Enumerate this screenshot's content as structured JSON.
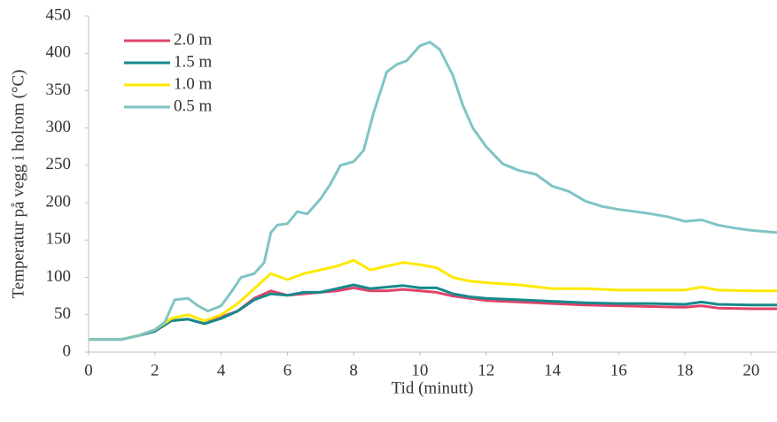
{
  "chart_data": {
    "type": "line",
    "xlabel": "Tid (minutt)",
    "ylabel": "Temperatur på vegg i holrom (°C)",
    "xlim": [
      0,
      20.78
    ],
    "xticks": [
      0,
      2,
      4,
      6,
      8,
      10,
      12,
      14,
      16,
      18,
      20
    ],
    "ylim": [
      0,
      450
    ],
    "yticks": [
      0,
      50,
      100,
      150,
      200,
      250,
      300,
      350,
      400,
      450
    ],
    "legend": "upper left",
    "series": [
      {
        "name": "2.0 m",
        "color": "#e0446a",
        "x": [
          0,
          1,
          1.5,
          2,
          2.5,
          3,
          3.5,
          4,
          4.5,
          5,
          5.5,
          6,
          6.5,
          7,
          7.5,
          8,
          8.5,
          9,
          9.5,
          10,
          10.5,
          11,
          11.5,
          12,
          13,
          14,
          15,
          16,
          17,
          18,
          18.5,
          19,
          20,
          20.78
        ],
        "values": [
          17,
          17,
          22,
          28,
          42,
          44,
          38,
          47,
          55,
          72,
          82,
          76,
          78,
          80,
          82,
          86,
          82,
          82,
          84,
          82,
          80,
          75,
          72,
          69,
          67,
          65,
          63,
          62,
          61,
          60,
          62,
          59,
          58,
          58
        ]
      },
      {
        "name": "1.5 m",
        "color": "#158a8c",
        "x": [
          0,
          1,
          1.5,
          2,
          2.5,
          3,
          3.5,
          4,
          4.5,
          5,
          5.5,
          6,
          6.5,
          7,
          7.5,
          8,
          8.5,
          9,
          9.5,
          10,
          10.5,
          11,
          11.5,
          12,
          13,
          14,
          15,
          16,
          17,
          18,
          18.5,
          19,
          20,
          20.78
        ],
        "values": [
          17,
          17,
          22,
          28,
          42,
          44,
          38,
          45,
          55,
          70,
          78,
          76,
          80,
          80,
          85,
          90,
          85,
          87,
          89,
          86,
          86,
          78,
          74,
          72,
          70,
          68,
          66,
          65,
          65,
          64,
          67,
          64,
          63,
          63
        ]
      },
      {
        "name": "1.0 m",
        "color": "#ffe800",
        "x": [
          0,
          1,
          1.5,
          2,
          2.5,
          3,
          3.5,
          4,
          4.5,
          5,
          5.5,
          6,
          6.5,
          7,
          7.5,
          8,
          8.5,
          9,
          9.5,
          10,
          10.5,
          11,
          11.5,
          12,
          13,
          14,
          15,
          16,
          17,
          18,
          18.5,
          19,
          20,
          20.78
        ],
        "values": [
          17,
          17,
          22,
          30,
          45,
          50,
          42,
          50,
          65,
          85,
          105,
          97,
          105,
          110,
          115,
          123,
          110,
          115,
          120,
          117,
          113,
          100,
          95,
          93,
          90,
          85,
          85,
          83,
          83,
          83,
          87,
          83,
          82,
          82
        ]
      },
      {
        "name": "0.5 m",
        "color": "#80c4c4",
        "x": [
          0,
          0.5,
          1,
          1.5,
          2,
          2.3,
          2.6,
          3,
          3.3,
          3.6,
          4,
          4.3,
          4.6,
          5,
          5.3,
          5.5,
          5.7,
          6,
          6.3,
          6.6,
          7,
          7.3,
          7.6,
          8,
          8.3,
          8.6,
          9,
          9.3,
          9.6,
          10,
          10.3,
          10.6,
          11,
          11.3,
          11.6,
          12,
          12.5,
          13,
          13.5,
          14,
          14.5,
          15,
          15.5,
          16,
          16.5,
          17,
          17.5,
          18,
          18.5,
          19,
          19.5,
          20,
          20.78
        ],
        "values": [
          17,
          17,
          17,
          22,
          30,
          40,
          70,
          72,
          62,
          55,
          62,
          80,
          100,
          105,
          120,
          160,
          170,
          172,
          188,
          185,
          205,
          225,
          250,
          255,
          270,
          320,
          375,
          385,
          390,
          410,
          415,
          405,
          370,
          330,
          300,
          275,
          252,
          243,
          238,
          222,
          215,
          202,
          195,
          191,
          188,
          185,
          181,
          175,
          177,
          170,
          166,
          163,
          160
        ]
      }
    ]
  }
}
